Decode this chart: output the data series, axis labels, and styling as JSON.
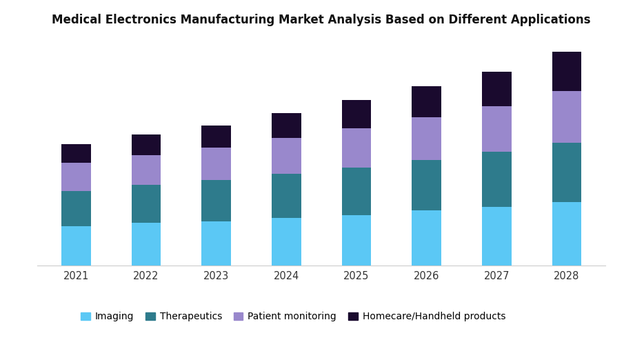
{
  "title": "Medical Electronics Manufacturing Market Analysis Based on Different Applications",
  "years": [
    2021,
    2022,
    2023,
    2024,
    2025,
    2026,
    2027,
    2028
  ],
  "segments": {
    "Imaging": [
      25,
      27,
      28,
      30,
      32,
      35,
      37,
      40
    ],
    "Therapeutics": [
      22,
      24,
      26,
      28,
      30,
      32,
      35,
      38
    ],
    "Patient monitoring": [
      18,
      19,
      21,
      23,
      25,
      27,
      29,
      33
    ],
    "Homecare/Handheld products": [
      12,
      13,
      14,
      16,
      18,
      20,
      22,
      25
    ]
  },
  "colors": {
    "Imaging": "#5BC8F5",
    "Therapeutics": "#2E7B8C",
    "Patient monitoring": "#9988CC",
    "Homecare/Handheld products": "#1A0A2E"
  },
  "background_color": "#FFFFFF",
  "bar_width": 0.42,
  "title_fontsize": 12,
  "legend_fontsize": 10,
  "tick_fontsize": 10.5
}
